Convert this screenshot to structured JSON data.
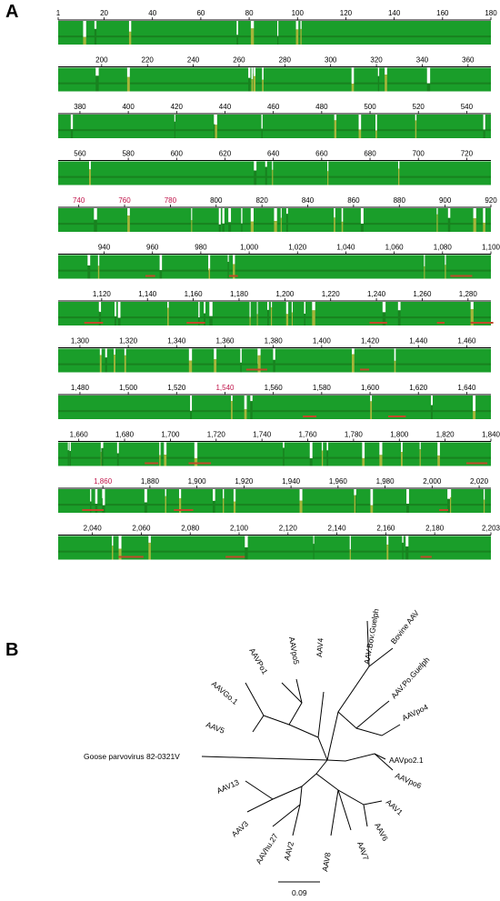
{
  "panel_a": {
    "label": "A",
    "rows": [
      {
        "start": 1,
        "end": 180,
        "ticks": [
          {
            "v": 1,
            "t": "1"
          },
          {
            "v": 20,
            "t": "20"
          },
          {
            "v": 40,
            "t": "40"
          },
          {
            "v": 60,
            "t": "60"
          },
          {
            "v": 80,
            "t": "80"
          },
          {
            "v": 100,
            "t": "100"
          },
          {
            "v": 120,
            "t": "120"
          },
          {
            "v": 140,
            "t": "140"
          },
          {
            "v": 160,
            "t": "160"
          },
          {
            "v": 180,
            "t": "180"
          }
        ]
      },
      {
        "start": 181,
        "end": 370,
        "ticks": [
          {
            "v": 200,
            "t": "200"
          },
          {
            "v": 220,
            "t": "220"
          },
          {
            "v": 240,
            "t": "240"
          },
          {
            "v": 260,
            "t": "260"
          },
          {
            "v": 280,
            "t": "280"
          },
          {
            "v": 300,
            "t": "300"
          },
          {
            "v": 320,
            "t": "320"
          },
          {
            "v": 340,
            "t": "340"
          },
          {
            "v": 360,
            "t": "360"
          }
        ]
      },
      {
        "start": 371,
        "end": 550,
        "ticks": [
          {
            "v": 380,
            "t": "380"
          },
          {
            "v": 400,
            "t": "400"
          },
          {
            "v": 420,
            "t": "420"
          },
          {
            "v": 440,
            "t": "440"
          },
          {
            "v": 460,
            "t": "460"
          },
          {
            "v": 480,
            "t": "480"
          },
          {
            "v": 500,
            "t": "500"
          },
          {
            "v": 520,
            "t": "520"
          },
          {
            "v": 540,
            "t": "540"
          }
        ]
      },
      {
        "start": 551,
        "end": 730,
        "ticks": [
          {
            "v": 560,
            "t": "560"
          },
          {
            "v": 580,
            "t": "580"
          },
          {
            "v": 600,
            "t": "600"
          },
          {
            "v": 620,
            "t": "620"
          },
          {
            "v": 640,
            "t": "640"
          },
          {
            "v": 660,
            "t": "660"
          },
          {
            "v": 680,
            "t": "680"
          },
          {
            "v": 700,
            "t": "700"
          },
          {
            "v": 720,
            "t": "720"
          }
        ]
      },
      {
        "start": 731,
        "end": 920,
        "ticks": [
          {
            "v": 740,
            "t": "740",
            "red": true
          },
          {
            "v": 760,
            "t": "760",
            "red": true
          },
          {
            "v": 780,
            "t": "780",
            "red": true
          },
          {
            "v": 800,
            "t": "800"
          },
          {
            "v": 820,
            "t": "820"
          },
          {
            "v": 840,
            "t": "840"
          },
          {
            "v": 860,
            "t": "860"
          },
          {
            "v": 880,
            "t": "880"
          },
          {
            "v": 900,
            "t": "900"
          },
          {
            "v": 920,
            "t": "920"
          }
        ]
      },
      {
        "start": 921,
        "end": 1100,
        "ticks": [
          {
            "v": 940,
            "t": "940"
          },
          {
            "v": 960,
            "t": "960"
          },
          {
            "v": 980,
            "t": "980"
          },
          {
            "v": 1000,
            "t": "1,000"
          },
          {
            "v": 1020,
            "t": "1,020"
          },
          {
            "v": 1040,
            "t": "1,040"
          },
          {
            "v": 1060,
            "t": "1,060"
          },
          {
            "v": 1080,
            "t": "1,080"
          },
          {
            "v": 1100,
            "t": "1,100"
          }
        ]
      },
      {
        "start": 1101,
        "end": 1290,
        "ticks": [
          {
            "v": 1120,
            "t": "1,120"
          },
          {
            "v": 1140,
            "t": "1,140"
          },
          {
            "v": 1160,
            "t": "1,160"
          },
          {
            "v": 1180,
            "t": "1,180"
          },
          {
            "v": 1200,
            "t": "1,200"
          },
          {
            "v": 1220,
            "t": "1,220"
          },
          {
            "v": 1240,
            "t": "1,240"
          },
          {
            "v": 1260,
            "t": "1,260"
          },
          {
            "v": 1280,
            "t": "1,280"
          }
        ]
      },
      {
        "start": 1291,
        "end": 1470,
        "ticks": [
          {
            "v": 1300,
            "t": "1,300"
          },
          {
            "v": 1320,
            "t": "1,320"
          },
          {
            "v": 1340,
            "t": "1,340"
          },
          {
            "v": 1360,
            "t": "1,360"
          },
          {
            "v": 1380,
            "t": "1,380"
          },
          {
            "v": 1400,
            "t": "1,400"
          },
          {
            "v": 1420,
            "t": "1,420"
          },
          {
            "v": 1440,
            "t": "1,440"
          },
          {
            "v": 1460,
            "t": "1,460"
          }
        ]
      },
      {
        "start": 1471,
        "end": 1650,
        "ticks": [
          {
            "v": 1480,
            "t": "1,480"
          },
          {
            "v": 1500,
            "t": "1,500"
          },
          {
            "v": 1520,
            "t": "1,520"
          },
          {
            "v": 1540,
            "t": "1,540",
            "red": true
          },
          {
            "v": 1560,
            "t": "1,560"
          },
          {
            "v": 1580,
            "t": "1,580"
          },
          {
            "v": 1600,
            "t": "1,600"
          },
          {
            "v": 1620,
            "t": "1,620"
          },
          {
            "v": 1640,
            "t": "1,640"
          }
        ]
      },
      {
        "start": 1651,
        "end": 1840,
        "ticks": [
          {
            "v": 1660,
            "t": "1,660"
          },
          {
            "v": 1680,
            "t": "1,680"
          },
          {
            "v": 1700,
            "t": "1,700"
          },
          {
            "v": 1720,
            "t": "1,720"
          },
          {
            "v": 1740,
            "t": "1,740"
          },
          {
            "v": 1760,
            "t": "1,760"
          },
          {
            "v": 1780,
            "t": "1,780"
          },
          {
            "v": 1800,
            "t": "1,800"
          },
          {
            "v": 1820,
            "t": "1,820"
          },
          {
            "v": 1840,
            "t": "1,840"
          }
        ]
      },
      {
        "start": 1841,
        "end": 2025,
        "ticks": [
          {
            "v": 1860,
            "t": "1,860",
            "red": true
          },
          {
            "v": 1880,
            "t": "1,880"
          },
          {
            "v": 1900,
            "t": "1,900"
          },
          {
            "v": 1920,
            "t": "1,920"
          },
          {
            "v": 1940,
            "t": "1,940"
          },
          {
            "v": 1960,
            "t": "1,960"
          },
          {
            "v": 1980,
            "t": "1,980"
          },
          {
            "v": 2000,
            "t": "2,000"
          },
          {
            "v": 2020,
            "t": "2,020"
          }
        ]
      },
      {
        "start": 2026,
        "end": 2203,
        "ticks": [
          {
            "v": 2040,
            "t": "2,040"
          },
          {
            "v": 2060,
            "t": "2,060"
          },
          {
            "v": 2080,
            "t": "2,080"
          },
          {
            "v": 2100,
            "t": "2,100"
          },
          {
            "v": 2120,
            "t": "2,120"
          },
          {
            "v": 2140,
            "t": "2,140"
          },
          {
            "v": 2160,
            "t": "2,160"
          },
          {
            "v": 2180,
            "t": "2,180"
          },
          {
            "v": 2203,
            "t": "2,203"
          }
        ]
      }
    ],
    "colors": {
      "high": "#1a9e2a",
      "low": "#18821f",
      "medium": "#a6b53a",
      "variable": "#c04a2a",
      "gap": "#ffffff",
      "rule": "#000000",
      "tick_text": "#000000",
      "tick_text_alt": "#c0144a"
    }
  },
  "panel_b": {
    "label": "B",
    "taxa": [
      "AAV.Bov.Guelph",
      "Bovine AAV",
      "AAV.Po.Guelph",
      "AAVpo4",
      "AAVpo2.1",
      "AAVpo6",
      "AAV1",
      "AAV6",
      "AAV7",
      "AAV8",
      "AAV2",
      "AAVhu.27",
      "AAV3",
      "AAV13",
      "Goose parvovirus 82-0321V",
      "AAV5",
      "AAVGo.1",
      "AAVPo1",
      "AAVpo5",
      "AAV4"
    ],
    "scale_label": "0.09"
  }
}
